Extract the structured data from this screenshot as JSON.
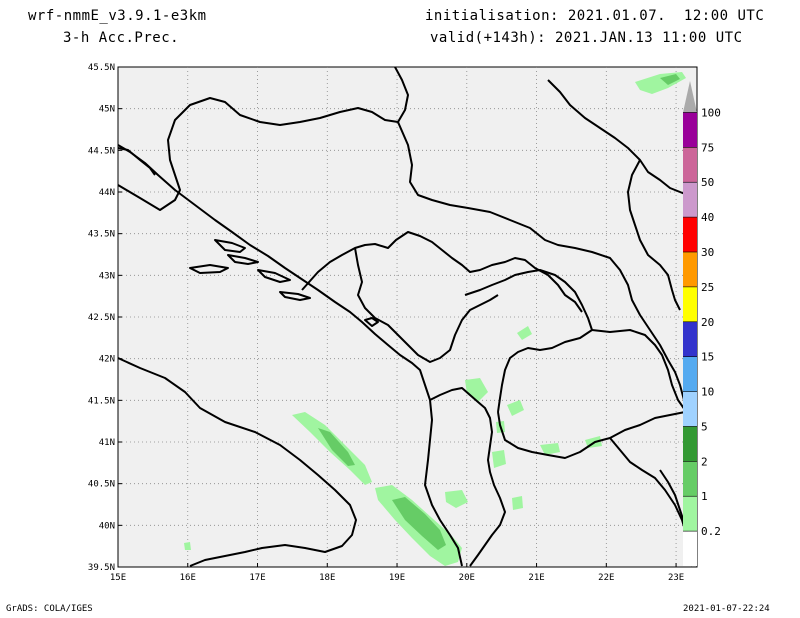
{
  "header": {
    "model": "wrf-nmmE_v3.9.1-e3km",
    "field": "3-h Acc.Prec.",
    "init": "initialisation: 2021.01.07.  12:00 UTC",
    "valid": "valid(+143h): 2021.JAN.13 11:00 UTC"
  },
  "footer": {
    "left": "GrADS: COLA/IGES",
    "right": "2021-01-07-22:24"
  },
  "map": {
    "lat_labels": [
      "45.5N",
      "45N",
      "44.5N",
      "44N",
      "43.5N",
      "43N",
      "42.5N",
      "42N",
      "41.5N",
      "41N",
      "40.5N",
      "40N",
      "39.5N"
    ],
    "lon_labels": [
      "15E",
      "16E",
      "17E",
      "18E",
      "19E",
      "20E",
      "21E",
      "22E",
      "23E"
    ],
    "lat_range": [
      39.5,
      45.5
    ],
    "lon_range": [
      15,
      23.3
    ]
  },
  "legend": {
    "levels": [
      "0.2",
      "1",
      "2",
      "5",
      "10",
      "15",
      "20",
      "25",
      "30",
      "40",
      "50",
      "75",
      "100"
    ],
    "colors": [
      "#ffffff",
      "#a0f5a0",
      "#66cc66",
      "#339933",
      "#a0d2ff",
      "#55aaf0",
      "#3333cc",
      "#ffff00",
      "#ff9900",
      "#ff0000",
      "#cc99cc",
      "#cc6699",
      "#990099",
      "#aaaaaa"
    ]
  }
}
